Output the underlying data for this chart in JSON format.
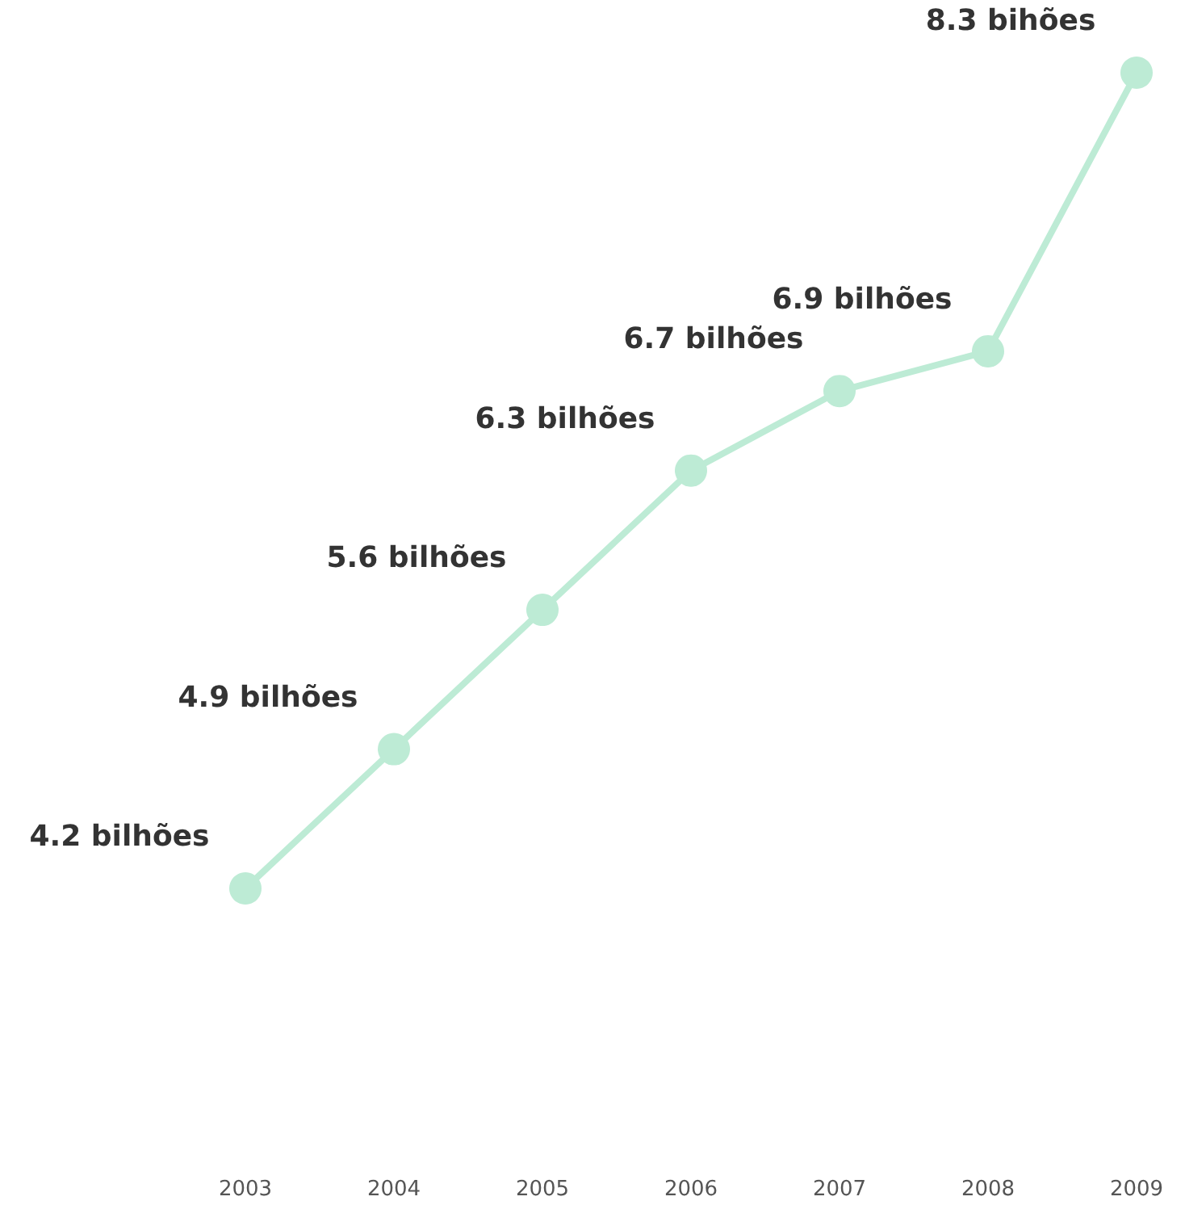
{
  "chart_data": {
    "type": "line",
    "categories": [
      "2003",
      "2004",
      "2005",
      "2006",
      "2007",
      "2008",
      "2009"
    ],
    "values": [
      4.2,
      4.9,
      5.6,
      6.3,
      6.7,
      6.9,
      8.3
    ],
    "value_labels": [
      "4.2 bilhões",
      "4.9 bilhões",
      "5.6 bilhões",
      "6.3 bilhões",
      "6.7 bilhões",
      "6.9 bilhões",
      "8.3 bihões"
    ],
    "color": "#bdebd5",
    "marker": "circle",
    "line_style": "solid",
    "tick_labels": "x"
  }
}
